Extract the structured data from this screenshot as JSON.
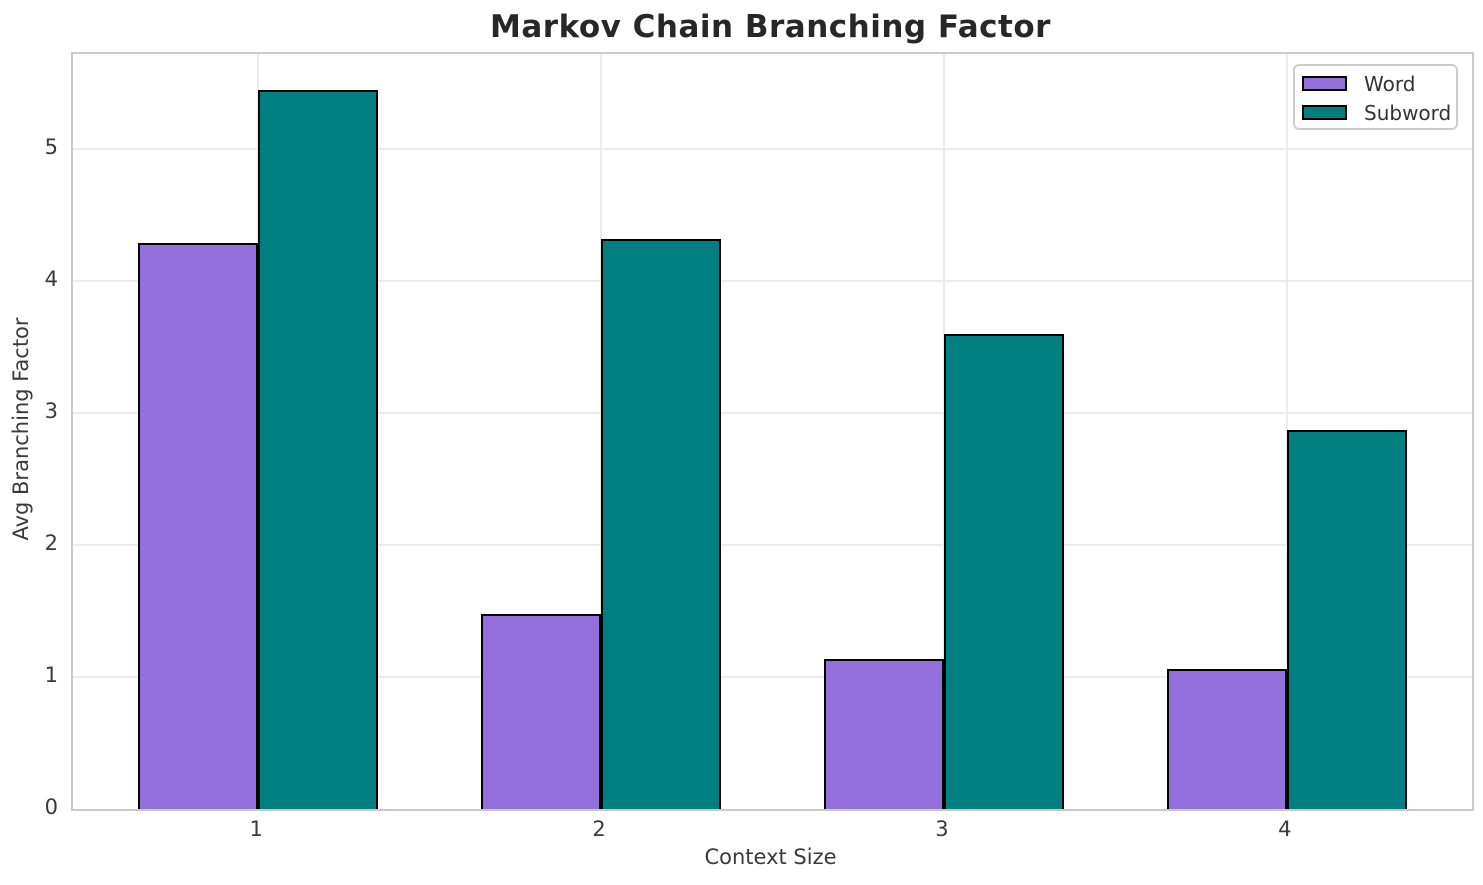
{
  "title": "Markov Chain Branching Factor",
  "chart_data": {
    "type": "bar",
    "title": "Markov Chain Branching Factor",
    "xlabel": "Context Size",
    "ylabel": "Avg Branching Factor",
    "categories": [
      "1",
      "2",
      "3",
      "4"
    ],
    "series": [
      {
        "name": "Word",
        "color": "#9370DB",
        "values": [
          4.29,
          1.48,
          1.14,
          1.06
        ]
      },
      {
        "name": "Subword",
        "color": "#008080",
        "values": [
          5.45,
          4.32,
          3.6,
          2.87
        ]
      }
    ],
    "yticks": [
      0,
      1,
      2,
      3,
      4,
      5
    ],
    "ylim": [
      0,
      5.72
    ],
    "xlim": [
      0.46,
      4.54
    ],
    "bar_width": 0.35,
    "bar_edge_color": "#000000",
    "grid": true,
    "grid_color": "#ebebeb",
    "spine_color": "#c9c9c9",
    "legend_position": "upper right",
    "legend_labels": [
      "Word",
      "Subword"
    ]
  }
}
